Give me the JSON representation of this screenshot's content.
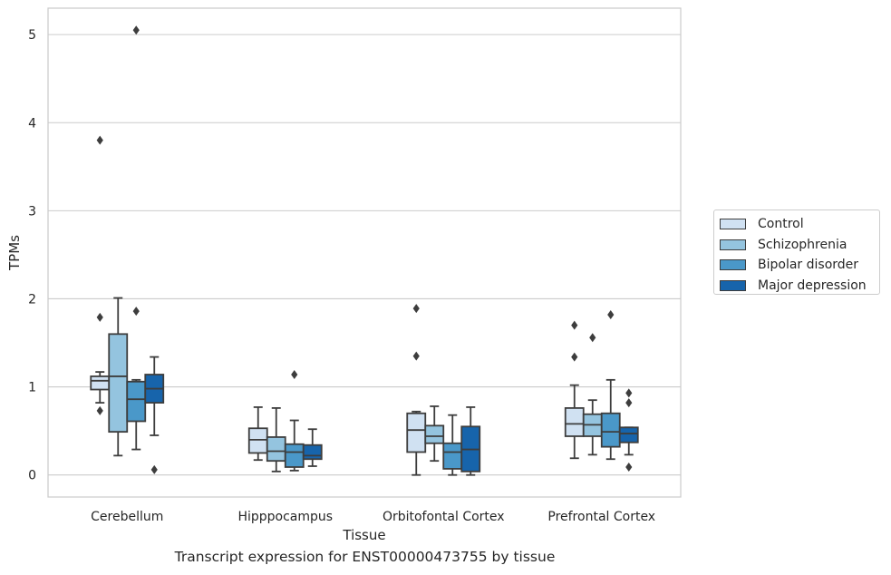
{
  "caption": "Transcript expression for ENST00000473755 by tissue",
  "legend": {
    "items": [
      {
        "label": "Control",
        "color": "#d0e1f2"
      },
      {
        "label": "Schizophrenia",
        "color": "#94c4df"
      },
      {
        "label": "Bipolar disorder",
        "color": "#4a98c9"
      },
      {
        "label": "Major depression",
        "color": "#1764ab"
      }
    ]
  },
  "chart_data": {
    "type": "box",
    "xlabel": "Tissue",
    "ylabel": "TPMs",
    "ylim": [
      -0.25,
      5.3
    ],
    "yticks": [
      0,
      1,
      2,
      3,
      4,
      5
    ],
    "grid": "horizontal",
    "legend_position": "right",
    "categories": [
      "Cerebellum",
      "Hipppocampus",
      "Orbitofontal Cortex",
      "Prefrontal Cortex"
    ],
    "series": [
      {
        "name": "Control",
        "color": "#d0e1f2",
        "boxes": [
          {
            "whislo": 0.82,
            "q1": 0.97,
            "med": 1.07,
            "q3": 1.12,
            "whishi": 1.17,
            "fliers": [
              3.8,
              1.79,
              0.73
            ]
          },
          {
            "whislo": 0.17,
            "q1": 0.25,
            "med": 0.4,
            "q3": 0.53,
            "whishi": 0.77,
            "fliers": []
          },
          {
            "whislo": 0.0,
            "q1": 0.26,
            "med": 0.51,
            "q3": 0.7,
            "whishi": 0.72,
            "fliers": [
              1.89,
              1.35
            ]
          },
          {
            "whislo": 0.19,
            "q1": 0.44,
            "med": 0.58,
            "q3": 0.76,
            "whishi": 1.02,
            "fliers": [
              1.7,
              1.34
            ]
          }
        ]
      },
      {
        "name": "Schizophrenia",
        "color": "#94c4df",
        "boxes": [
          {
            "whislo": 0.22,
            "q1": 0.49,
            "med": 1.12,
            "q3": 1.6,
            "whishi": 2.01,
            "fliers": []
          },
          {
            "whislo": 0.04,
            "q1": 0.16,
            "med": 0.27,
            "q3": 0.43,
            "whishi": 0.76,
            "fliers": []
          },
          {
            "whislo": 0.16,
            "q1": 0.36,
            "med": 0.44,
            "q3": 0.56,
            "whishi": 0.78,
            "fliers": []
          },
          {
            "whislo": 0.23,
            "q1": 0.44,
            "med": 0.57,
            "q3": 0.69,
            "whishi": 0.85,
            "fliers": [
              1.56
            ]
          }
        ]
      },
      {
        "name": "Bipolar disorder",
        "color": "#4a98c9",
        "boxes": [
          {
            "whislo": 0.29,
            "q1": 0.61,
            "med": 0.86,
            "q3": 1.06,
            "whishi": 1.08,
            "fliers": [
              5.05,
              1.86
            ]
          },
          {
            "whislo": 0.05,
            "q1": 0.09,
            "med": 0.26,
            "q3": 0.35,
            "whishi": 0.62,
            "fliers": [
              1.14
            ]
          },
          {
            "whislo": 0.0,
            "q1": 0.07,
            "med": 0.26,
            "q3": 0.36,
            "whishi": 0.68,
            "fliers": []
          },
          {
            "whislo": 0.18,
            "q1": 0.32,
            "med": 0.49,
            "q3": 0.7,
            "whishi": 1.08,
            "fliers": [
              1.82
            ]
          }
        ]
      },
      {
        "name": "Major depression",
        "color": "#1764ab",
        "boxes": [
          {
            "whislo": 0.45,
            "q1": 0.82,
            "med": 0.98,
            "q3": 1.14,
            "whishi": 1.34,
            "fliers": [
              0.06
            ]
          },
          {
            "whislo": 0.1,
            "q1": 0.18,
            "med": 0.22,
            "q3": 0.34,
            "whishi": 0.52,
            "fliers": []
          },
          {
            "whislo": 0.0,
            "q1": 0.04,
            "med": 0.29,
            "q3": 0.55,
            "whishi": 0.77,
            "fliers": []
          },
          {
            "whislo": 0.23,
            "q1": 0.37,
            "med": 0.47,
            "q3": 0.54,
            "whishi": 0.54,
            "fliers": [
              0.93,
              0.82,
              0.09
            ]
          }
        ]
      }
    ]
  }
}
